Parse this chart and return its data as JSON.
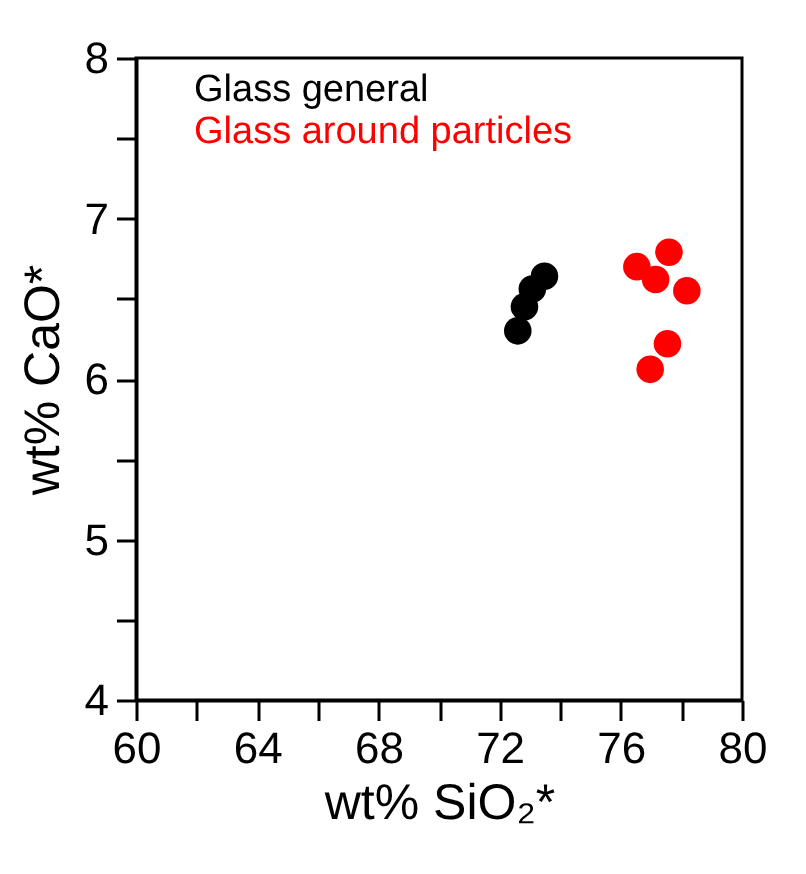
{
  "chart_data": {
    "type": "scatter",
    "xlabel": "wt% SiO₂*",
    "ylabel": "wt% CaO*",
    "xlim": [
      60,
      80
    ],
    "ylim": [
      4,
      8
    ],
    "xticks": [
      60,
      {
        "value": 62,
        "label": null
      },
      64,
      {
        "value": 66,
        "label": null
      },
      68,
      {
        "value": 70,
        "label": null
      },
      72,
      {
        "value": 74,
        "label": null
      },
      76,
      {
        "value": 78,
        "label": null
      },
      80
    ],
    "yticks": [
      4,
      {
        "value": 4.5,
        "label": null
      },
      5,
      {
        "value": 5.5,
        "label": null
      },
      6,
      {
        "value": 6.5,
        "label": null
      },
      7,
      {
        "value": 7.5,
        "label": null
      },
      8
    ],
    "marker": "circle",
    "legend": "top left",
    "grid": false,
    "series": [
      {
        "name": "Glass general",
        "color": "#000000",
        "x": [
          72.6,
          72.82,
          73.08,
          73.48
        ],
        "values": [
          6.3,
          6.45,
          6.56,
          6.64
        ]
      },
      {
        "name": "Glass around particles",
        "color": "#ff0000",
        "x": [
          76.53,
          77.15,
          77.59,
          78.18,
          77.54,
          76.97
        ],
        "values": [
          6.7,
          6.62,
          6.79,
          6.55,
          6.22,
          6.06
        ]
      }
    ]
  }
}
